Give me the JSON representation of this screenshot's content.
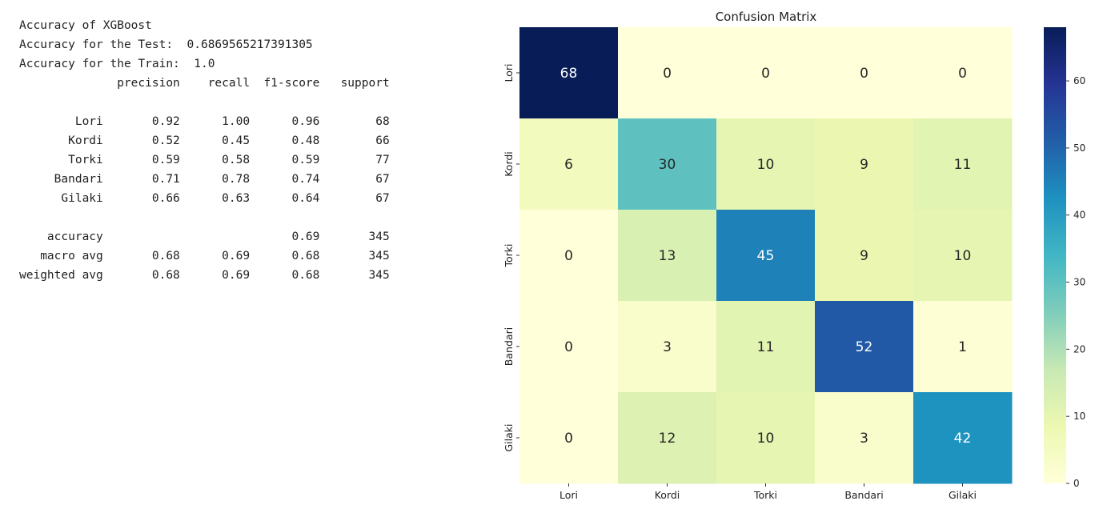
{
  "console_output": {
    "lines": [
      "Accuracy of XGBoost",
      "Accuracy for the Test:  0.6869565217391305",
      "Accuracy for the Train:  1.0",
      "              precision    recall  f1-score   support",
      "",
      "        Lori       0.92      1.00      0.96        68",
      "       Kordi       0.52      0.45      0.48        66",
      "       Torki       0.59      0.58      0.59        77",
      "     Bandari       0.71      0.78      0.74        67",
      "      Gilaki       0.66      0.63      0.64        67",
      "",
      "    accuracy                           0.69       345",
      "   macro avg       0.68      0.69      0.68       345",
      "weighted avg       0.68      0.69      0.68       345"
    ]
  },
  "chart_data": {
    "type": "heatmap",
    "title": "Confusion Matrix",
    "xlabel": "",
    "ylabel": "",
    "x_categories": [
      "Lori",
      "Kordi",
      "Torki",
      "Bandari",
      "Gilaki"
    ],
    "y_categories": [
      "Lori",
      "Kordi",
      "Torki",
      "Bandari",
      "Gilaki"
    ],
    "values": [
      [
        68,
        0,
        0,
        0,
        0
      ],
      [
        6,
        30,
        10,
        9,
        11
      ],
      [
        0,
        13,
        45,
        9,
        10
      ],
      [
        0,
        3,
        11,
        52,
        1
      ],
      [
        0,
        12,
        10,
        3,
        42
      ]
    ],
    "colormap": "YlGnBu",
    "vmin": 0,
    "vmax": 68,
    "colorbar_ticks": [
      0,
      10,
      20,
      30,
      40,
      50,
      60
    ],
    "annotations": true,
    "grid": false
  }
}
